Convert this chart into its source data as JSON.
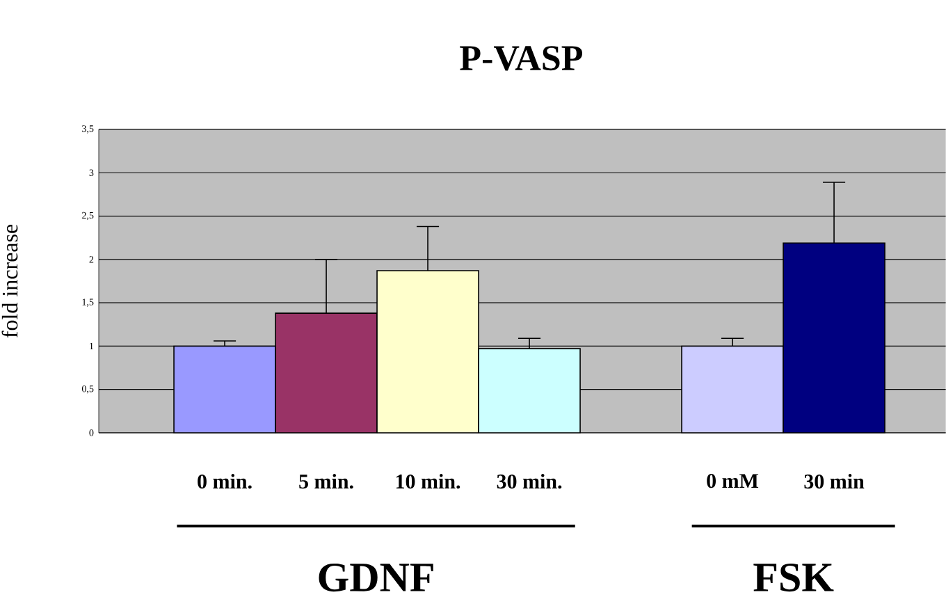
{
  "chart_data": {
    "type": "bar",
    "title": "P-VASP",
    "ylabel": "fold increase",
    "categories": [
      "0 min.",
      "5 min.",
      "10 min.",
      "30 min.",
      null,
      "0 mM",
      "30 min"
    ],
    "values": [
      1.0,
      1.38,
      1.87,
      0.97,
      null,
      1.0,
      2.19
    ],
    "colors": [
      "#9999ff",
      "#993366",
      "#ffffcc",
      "#ccffff",
      "#c0c0c0",
      "#ccccff",
      "#000080"
    ],
    "errors": [
      [
        1.0,
        1.06
      ],
      [
        1.38,
        2.0
      ],
      [
        1.87,
        2.38
      ],
      [
        0.97,
        1.09
      ],
      null,
      [
        1.0,
        1.09
      ],
      [
        2.19,
        2.89
      ]
    ],
    "ylim": [
      0,
      3.5
    ],
    "yticks": [
      0,
      {
        "value": 0.5,
        "label": "0,5"
      },
      1,
      {
        "value": 1.5,
        "label": "1,5"
      },
      2,
      {
        "value": 2.5,
        "label": "2,5"
      },
      3,
      {
        "value": 3.5,
        "label": "3,5"
      }
    ],
    "grid": "y",
    "annotations": [
      "GDNF",
      "FSK"
    ]
  }
}
